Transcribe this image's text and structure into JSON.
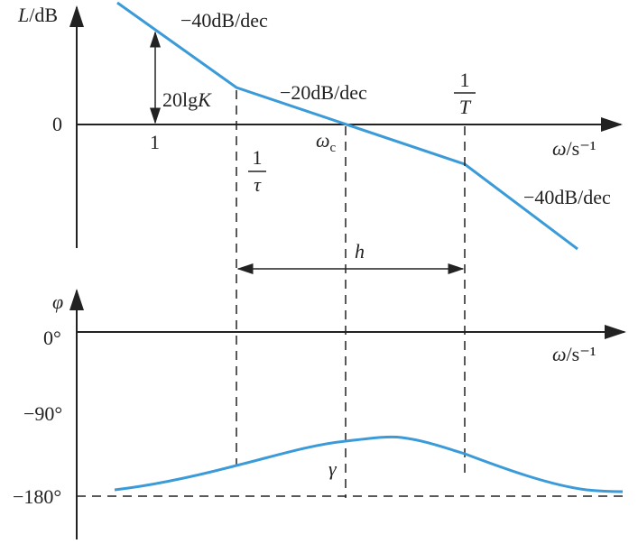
{
  "magnitude": {
    "y_label": {
      "symbol": "L",
      "unit": "/dB"
    },
    "zero": "0",
    "one": "1",
    "slope_low": "−40dB/dec",
    "gain": {
      "text": "20lg",
      "symbol": "K"
    },
    "slope_mid": "−20dB/dec",
    "crossover": {
      "symbol": "ω",
      "subscript": "c"
    },
    "corner_high": {
      "numerator": "1",
      "denominator": "T"
    },
    "corner_low": {
      "numerator": "1",
      "denominator": "τ"
    },
    "x_label": {
      "symbol": "ω",
      "unit": "/s⁻¹"
    },
    "slope_high": "−40dB/dec",
    "width": "h"
  },
  "phase": {
    "y_label": "φ",
    "zero": "0°",
    "x_label": {
      "symbol": "ω",
      "unit": "/s⁻¹"
    },
    "minus90": "−90°",
    "margin": "γ",
    "minus180": "−180°"
  }
}
